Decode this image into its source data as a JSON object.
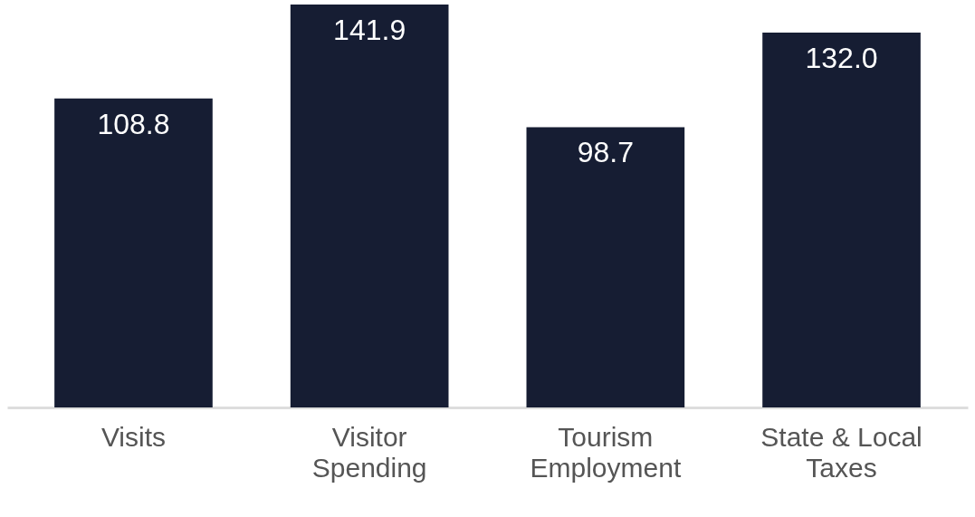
{
  "chart_data": {
    "type": "bar",
    "categories": [
      "Visits",
      "Visitor Spending",
      "Tourism Employment",
      "State & Local Taxes"
    ],
    "values": [
      108.8,
      141.9,
      98.7,
      132.0
    ],
    "value_labels": [
      "108.8",
      "141.9",
      "98.7",
      "132.0"
    ],
    "color": "#161d33"
  }
}
